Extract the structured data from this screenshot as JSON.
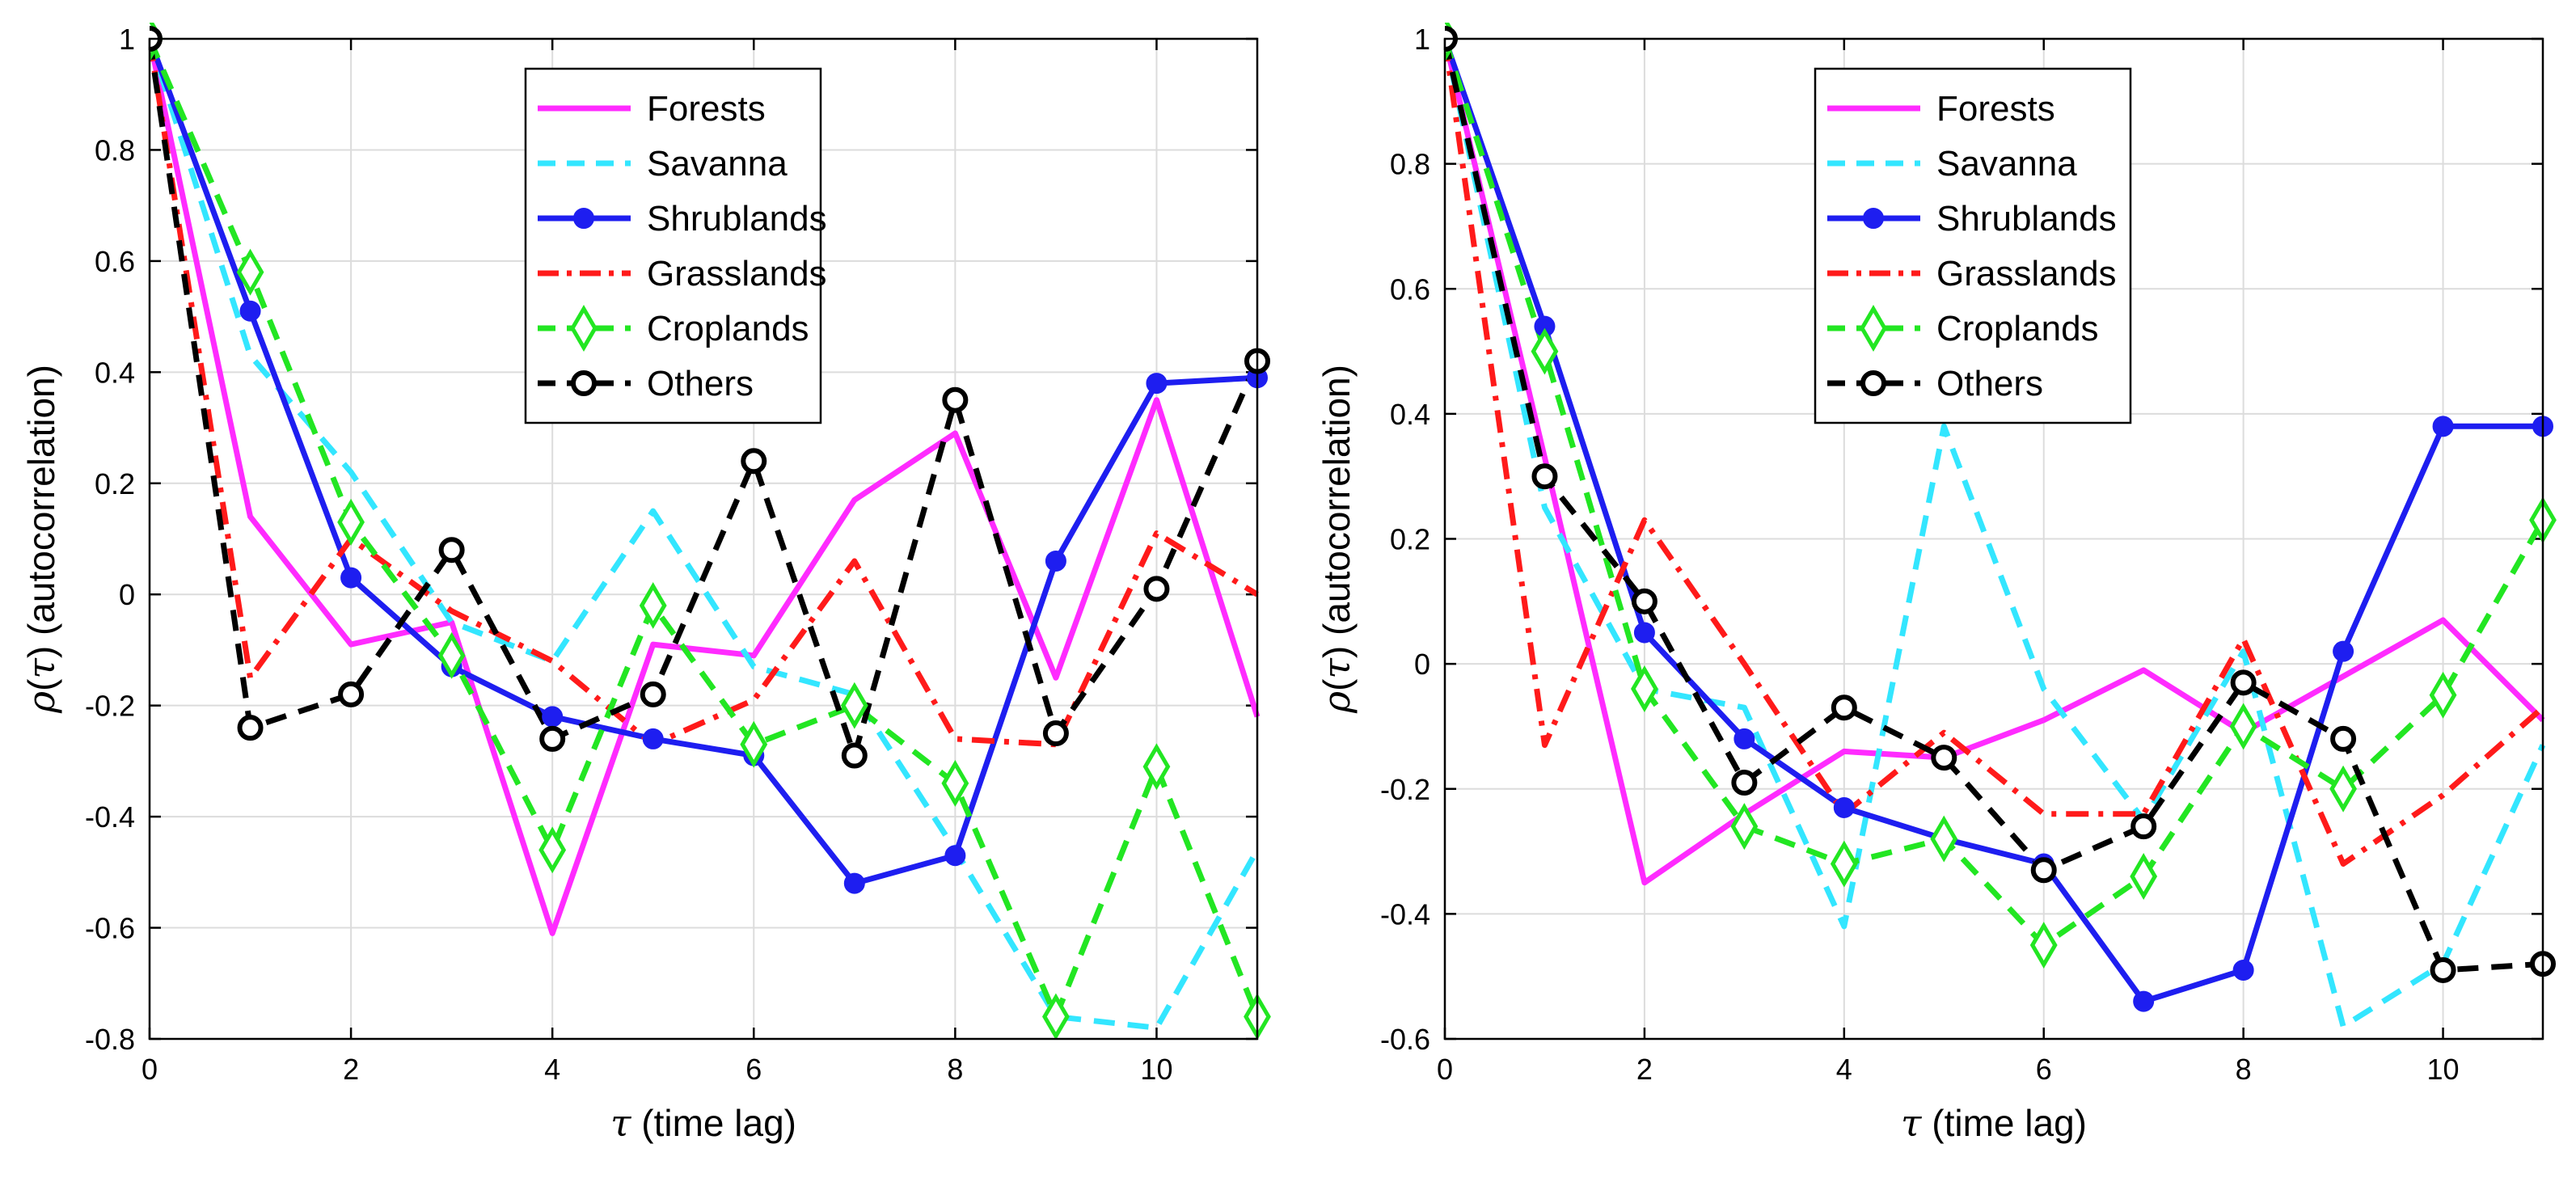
{
  "chart_data": [
    {
      "type": "line",
      "title": "",
      "xlabel_symbol": "τ",
      "xlabel_text": "(time lag)",
      "ylabel_symbol_rho": "ρ",
      "ylabel_symbol_open": "(",
      "ylabel_symbol_tau": "τ",
      "ylabel_symbol_close": ")",
      "ylabel_text": "(autocorrelation)",
      "xlim": [
        0,
        11
      ],
      "ylim": [
        -0.8,
        1
      ],
      "xticks": [
        0,
        2,
        4,
        6,
        8,
        10
      ],
      "xtick_labels": [
        "0",
        "2",
        "4",
        "6",
        "8",
        "10"
      ],
      "yticks": [
        -0.8,
        -0.6,
        -0.4,
        -0.2,
        0,
        0.2,
        0.4,
        0.6,
        0.8,
        1
      ],
      "ytick_labels": [
        "-0.8",
        "-0.6",
        "-0.4",
        "-0.2",
        "0",
        "0.2",
        "0.4",
        "0.6",
        "0.8",
        "1"
      ],
      "grid": true,
      "legend_position": "top-center",
      "x": [
        0,
        1,
        2,
        3,
        4,
        5,
        6,
        7,
        8,
        9,
        10,
        11
      ],
      "series": [
        {
          "name": "Forests",
          "color": "#ff2bff",
          "style": "solid",
          "marker": "none",
          "values": [
            1.0,
            0.14,
            -0.09,
            -0.05,
            -0.61,
            -0.09,
            -0.11,
            0.17,
            0.29,
            -0.15,
            0.35,
            -0.22
          ]
        },
        {
          "name": "Savanna",
          "color": "#33e6ff",
          "style": "dashed",
          "marker": "none",
          "values": [
            1.0,
            0.43,
            0.22,
            -0.05,
            -0.12,
            0.15,
            -0.13,
            -0.18,
            -0.46,
            -0.76,
            -0.78,
            -0.46
          ]
        },
        {
          "name": "Shrublands",
          "color": "#1e1ef0",
          "style": "solid",
          "marker": "dot",
          "values": [
            1.0,
            0.51,
            0.03,
            -0.13,
            -0.22,
            -0.26,
            -0.29,
            -0.52,
            -0.47,
            0.06,
            0.38,
            0.39
          ]
        },
        {
          "name": "Grasslands",
          "color": "#ff1a1a",
          "style": "dashdot",
          "marker": "none",
          "values": [
            1.0,
            -0.15,
            0.1,
            -0.03,
            -0.12,
            -0.27,
            -0.19,
            0.06,
            -0.26,
            -0.27,
            0.11,
            0.0
          ]
        },
        {
          "name": "Croplands",
          "color": "#22e622",
          "style": "dashed",
          "marker": "diamond",
          "values": [
            1.0,
            0.58,
            0.13,
            -0.11,
            -0.46,
            -0.02,
            -0.27,
            -0.2,
            -0.34,
            -0.76,
            -0.31,
            -0.76
          ]
        },
        {
          "name": "Others",
          "color": "#000000",
          "style": "dashed",
          "marker": "circle",
          "values": [
            1.0,
            -0.24,
            -0.18,
            0.08,
            -0.26,
            -0.18,
            0.24,
            -0.29,
            0.35,
            -0.25,
            0.01,
            0.42
          ]
        }
      ]
    },
    {
      "type": "line",
      "title": "",
      "xlabel_symbol": "τ",
      "xlabel_text": "(time lag)",
      "ylabel_symbol_rho": "ρ",
      "ylabel_symbol_open": "(",
      "ylabel_symbol_tau": "τ",
      "ylabel_symbol_close": ")",
      "ylabel_text": "(autocorrelation)",
      "xlim": [
        0,
        11
      ],
      "ylim": [
        -0.6,
        1
      ],
      "xticks": [
        0,
        2,
        4,
        6,
        8,
        10
      ],
      "xtick_labels": [
        "0",
        "2",
        "4",
        "6",
        "8",
        "10"
      ],
      "yticks": [
        -0.6,
        -0.4,
        -0.2,
        0,
        0.2,
        0.4,
        0.6,
        0.8,
        1
      ],
      "ytick_labels": [
        "-0.6",
        "-0.4",
        "-0.2",
        "0",
        "0.2",
        "0.4",
        "0.6",
        "0.8",
        "1"
      ],
      "grid": true,
      "legend_position": "top-center",
      "x": [
        0,
        1,
        2,
        3,
        4,
        5,
        6,
        7,
        8,
        9,
        10,
        11
      ],
      "series": [
        {
          "name": "Forests",
          "color": "#ff2bff",
          "style": "solid",
          "marker": "none",
          "values": [
            1.0,
            0.33,
            -0.35,
            -0.24,
            -0.14,
            -0.15,
            -0.09,
            -0.01,
            -0.11,
            -0.02,
            0.07,
            -0.09
          ]
        },
        {
          "name": "Savanna",
          "color": "#33e6ff",
          "style": "dashed",
          "marker": "none",
          "values": [
            1.0,
            0.25,
            -0.04,
            -0.07,
            -0.42,
            0.38,
            -0.04,
            -0.25,
            0.02,
            -0.58,
            -0.48,
            -0.13
          ]
        },
        {
          "name": "Shrublands",
          "color": "#1e1ef0",
          "style": "solid",
          "marker": "dot",
          "values": [
            1.0,
            0.54,
            0.05,
            -0.12,
            -0.23,
            -0.28,
            -0.32,
            -0.54,
            -0.49,
            0.02,
            0.38,
            0.38
          ]
        },
        {
          "name": "Grasslands",
          "color": "#ff1a1a",
          "style": "dashdot",
          "marker": "none",
          "values": [
            1.0,
            -0.13,
            0.23,
            0.0,
            -0.24,
            -0.11,
            -0.24,
            -0.24,
            0.04,
            -0.32,
            -0.21,
            -0.07
          ]
        },
        {
          "name": "Croplands",
          "color": "#22e622",
          "style": "dashed",
          "marker": "diamond",
          "values": [
            1.0,
            0.5,
            -0.04,
            -0.26,
            -0.32,
            -0.28,
            -0.45,
            -0.34,
            -0.1,
            -0.2,
            -0.05,
            0.23
          ]
        },
        {
          "name": "Others",
          "color": "#000000",
          "style": "dashed",
          "marker": "circle",
          "values": [
            1.0,
            0.3,
            0.1,
            -0.19,
            -0.07,
            -0.15,
            -0.33,
            -0.26,
            -0.03,
            -0.12,
            -0.49,
            -0.48
          ]
        }
      ]
    }
  ]
}
